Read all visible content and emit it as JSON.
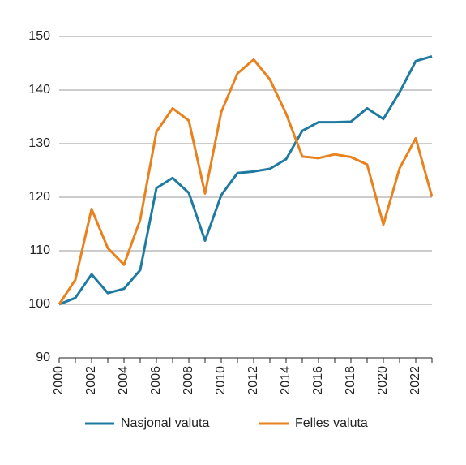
{
  "chart_data": {
    "type": "line",
    "x": [
      2000,
      2001,
      2002,
      2003,
      2004,
      2005,
      2006,
      2007,
      2008,
      2009,
      2010,
      2011,
      2012,
      2013,
      2014,
      2015,
      2016,
      2017,
      2018,
      2019,
      2020,
      2021,
      2022,
      2023
    ],
    "series": [
      {
        "name": "Nasjonal valuta",
        "color": "#1f7aa0",
        "values": [
          100,
          101.2,
          105.6,
          102.1,
          102.9,
          106.4,
          121.7,
          123.6,
          120.8,
          111.9,
          120.4,
          124.5,
          124.8,
          125.3,
          127.1,
          132.4,
          134.0,
          134.0,
          134.1,
          136.6,
          134.6,
          139.6,
          145.4,
          146.3
        ]
      },
      {
        "name": "Felles valuta",
        "color": "#e8821e",
        "values": [
          100,
          104.6,
          117.8,
          110.5,
          107.4,
          115.8,
          132.2,
          136.6,
          134.3,
          120.7,
          135.9,
          143.1,
          145.7,
          142.0,
          135.6,
          127.6,
          127.3,
          128.0,
          127.5,
          126.1,
          114.9,
          125.4,
          131.0,
          120.1
        ]
      }
    ],
    "xlim": [
      2000,
      2023
    ],
    "xticks": [
      2000,
      2002,
      2004,
      2006,
      2008,
      2010,
      2012,
      2014,
      2016,
      2018,
      2020,
      2022
    ],
    "ylim": [
      90,
      150
    ],
    "yticks": [
      90,
      100,
      110,
      120,
      130,
      140,
      150
    ],
    "grid": true,
    "legend": "bottom"
  }
}
